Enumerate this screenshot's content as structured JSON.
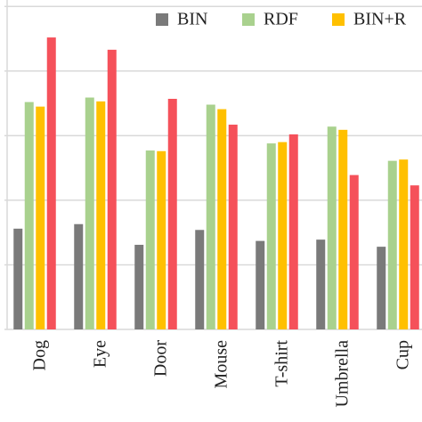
{
  "chart_data": {
    "type": "bar",
    "categories": [
      "Dog",
      "Eye",
      "Door",
      "Mouse",
      "T-shirt",
      "Umbrella",
      "Cup"
    ],
    "series": [
      {
        "name": "BIN",
        "color": "#7a7a7a",
        "values": [
          1.56,
          1.63,
          1.31,
          1.54,
          1.37,
          1.39,
          1.28
        ]
      },
      {
        "name": "RDF",
        "color": "#a9d18e",
        "values": [
          3.52,
          3.59,
          2.77,
          3.48,
          2.88,
          3.14,
          2.61
        ]
      },
      {
        "name": "BIN+R",
        "color": "#ffc000",
        "values": [
          3.45,
          3.53,
          2.76,
          3.41,
          2.9,
          3.09,
          2.63
        ]
      },
      {
        "color": "#f5515a",
        "values": [
          4.52,
          4.33,
          3.57,
          3.17,
          3.02,
          2.39,
          2.23
        ]
      }
    ],
    "ylim": [
      0,
      5.1
    ],
    "yticks": [
      0,
      1,
      2,
      3,
      4,
      5
    ],
    "grid": true
  }
}
